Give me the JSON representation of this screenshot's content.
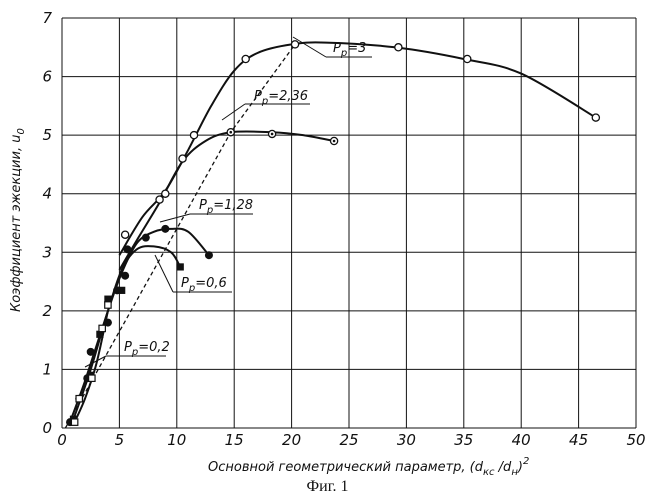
{
  "chart_data": {
    "type": "line",
    "xlabel": "Основной геометрический параметр, (d",
    "xlabel_sub1": "кс",
    "xlabel_mid": " /d",
    "xlabel_sub2": "н",
    "xlabel_end": ")",
    "xlabel_sup": "2",
    "ylabel": "Коэффициент эжекции, u",
    "ylabel_sub": "0",
    "xlim": [
      0,
      50
    ],
    "ylim": [
      0,
      7
    ],
    "x_ticks": [
      0,
      5,
      10,
      15,
      20,
      25,
      30,
      35,
      40,
      45,
      50
    ],
    "y_ticks": [
      0,
      1,
      2,
      3,
      4,
      5,
      6,
      7
    ],
    "grid": true,
    "series": [
      {
        "name": "Pp=3",
        "label_main": "P",
        "label_sub": "p",
        "label_val": "=3",
        "marker": "open-circle",
        "points": [
          [
            5.5,
            3.3
          ],
          [
            8.5,
            3.9
          ],
          [
            9.0,
            4.0
          ],
          [
            10.5,
            4.6
          ],
          [
            11.5,
            5.0
          ],
          [
            16.0,
            6.3
          ],
          [
            20.3,
            6.55
          ],
          [
            29.3,
            6.5
          ],
          [
            35.3,
            6.3
          ],
          [
            46.5,
            5.3
          ]
        ],
        "curve": [
          [
            5.0,
            2.95
          ],
          [
            7.0,
            3.6
          ],
          [
            9.0,
            4.05
          ],
          [
            11.0,
            4.75
          ],
          [
            13.0,
            5.5
          ],
          [
            15.0,
            6.1
          ],
          [
            17.0,
            6.4
          ],
          [
            20.0,
            6.55
          ],
          [
            23.0,
            6.58
          ],
          [
            29.0,
            6.5
          ],
          [
            35.0,
            6.3
          ],
          [
            40.0,
            6.05
          ],
          [
            46.5,
            5.3
          ]
        ]
      },
      {
        "name": "Pp=2,36",
        "label_main": "P",
        "label_sub": "p",
        "label_val": "=2,36",
        "marker": "circle-dot",
        "points": [
          [
            14.7,
            5.05
          ],
          [
            18.3,
            5.02
          ],
          [
            23.7,
            4.9
          ]
        ],
        "curve": [
          [
            5.0,
            2.7
          ],
          [
            6.5,
            3.2
          ],
          [
            8.5,
            3.85
          ],
          [
            10.5,
            4.55
          ],
          [
            12.5,
            4.9
          ],
          [
            14.7,
            5.05
          ],
          [
            18.3,
            5.05
          ],
          [
            21.0,
            5.0
          ],
          [
            23.7,
            4.9
          ]
        ]
      },
      {
        "name": "Pp=1,28",
        "label_main": "P",
        "label_sub": "p",
        "label_val": "=1,28",
        "marker": "filled-circle",
        "points": [
          [
            0.7,
            0.1
          ],
          [
            1.5,
            0.5
          ],
          [
            2.2,
            0.85
          ],
          [
            2.5,
            1.3
          ],
          [
            4.0,
            1.8
          ],
          [
            4.8,
            2.35
          ],
          [
            5.5,
            2.6
          ],
          [
            5.7,
            3.05
          ],
          [
            7.3,
            3.25
          ],
          [
            9.0,
            3.4
          ],
          [
            12.8,
            2.95
          ]
        ],
        "curve": [
          [
            0.7,
            0.1
          ],
          [
            2.0,
            0.8
          ],
          [
            3.5,
            1.7
          ],
          [
            5.0,
            2.55
          ],
          [
            6.5,
            3.15
          ],
          [
            8.0,
            3.35
          ],
          [
            9.5,
            3.4
          ],
          [
            11.0,
            3.35
          ],
          [
            12.8,
            2.95
          ]
        ]
      },
      {
        "name": "Pp=0,6",
        "label_main": "P",
        "label_sub": "p",
        "label_val": "=0,6",
        "marker": "filled-square",
        "points": [
          [
            1.0,
            0.15
          ],
          [
            2.5,
            0.9
          ],
          [
            3.3,
            1.6
          ],
          [
            4.0,
            2.2
          ],
          [
            5.2,
            2.35
          ],
          [
            10.3,
            2.75
          ]
        ],
        "curve": [
          [
            1.0,
            0.15
          ],
          [
            2.5,
            1.0
          ],
          [
            4.0,
            2.0
          ],
          [
            5.2,
            2.7
          ],
          [
            6.5,
            3.05
          ],
          [
            8.0,
            3.1
          ],
          [
            9.5,
            3.0
          ],
          [
            10.3,
            2.75
          ]
        ]
      },
      {
        "name": "Pp=0,2",
        "label_main": "P",
        "label_sub": "p",
        "label_val": "=0,2",
        "marker": "open-square",
        "points": [
          [
            1.1,
            0.1
          ],
          [
            1.5,
            0.5
          ],
          [
            2.6,
            0.85
          ],
          [
            3.5,
            1.7
          ],
          [
            4.0,
            2.1
          ]
        ],
        "curve": [
          [
            1.1,
            0.1
          ],
          [
            2.0,
            0.5
          ],
          [
            3.0,
            1.1
          ],
          [
            4.0,
            2.0
          ]
        ]
      }
    ],
    "envelope_dashed": [
      [
        0.3,
        0.0
      ],
      [
        14.7,
        5.05
      ],
      [
        20.3,
        6.55
      ]
    ]
  },
  "caption": "Фиг. 1"
}
